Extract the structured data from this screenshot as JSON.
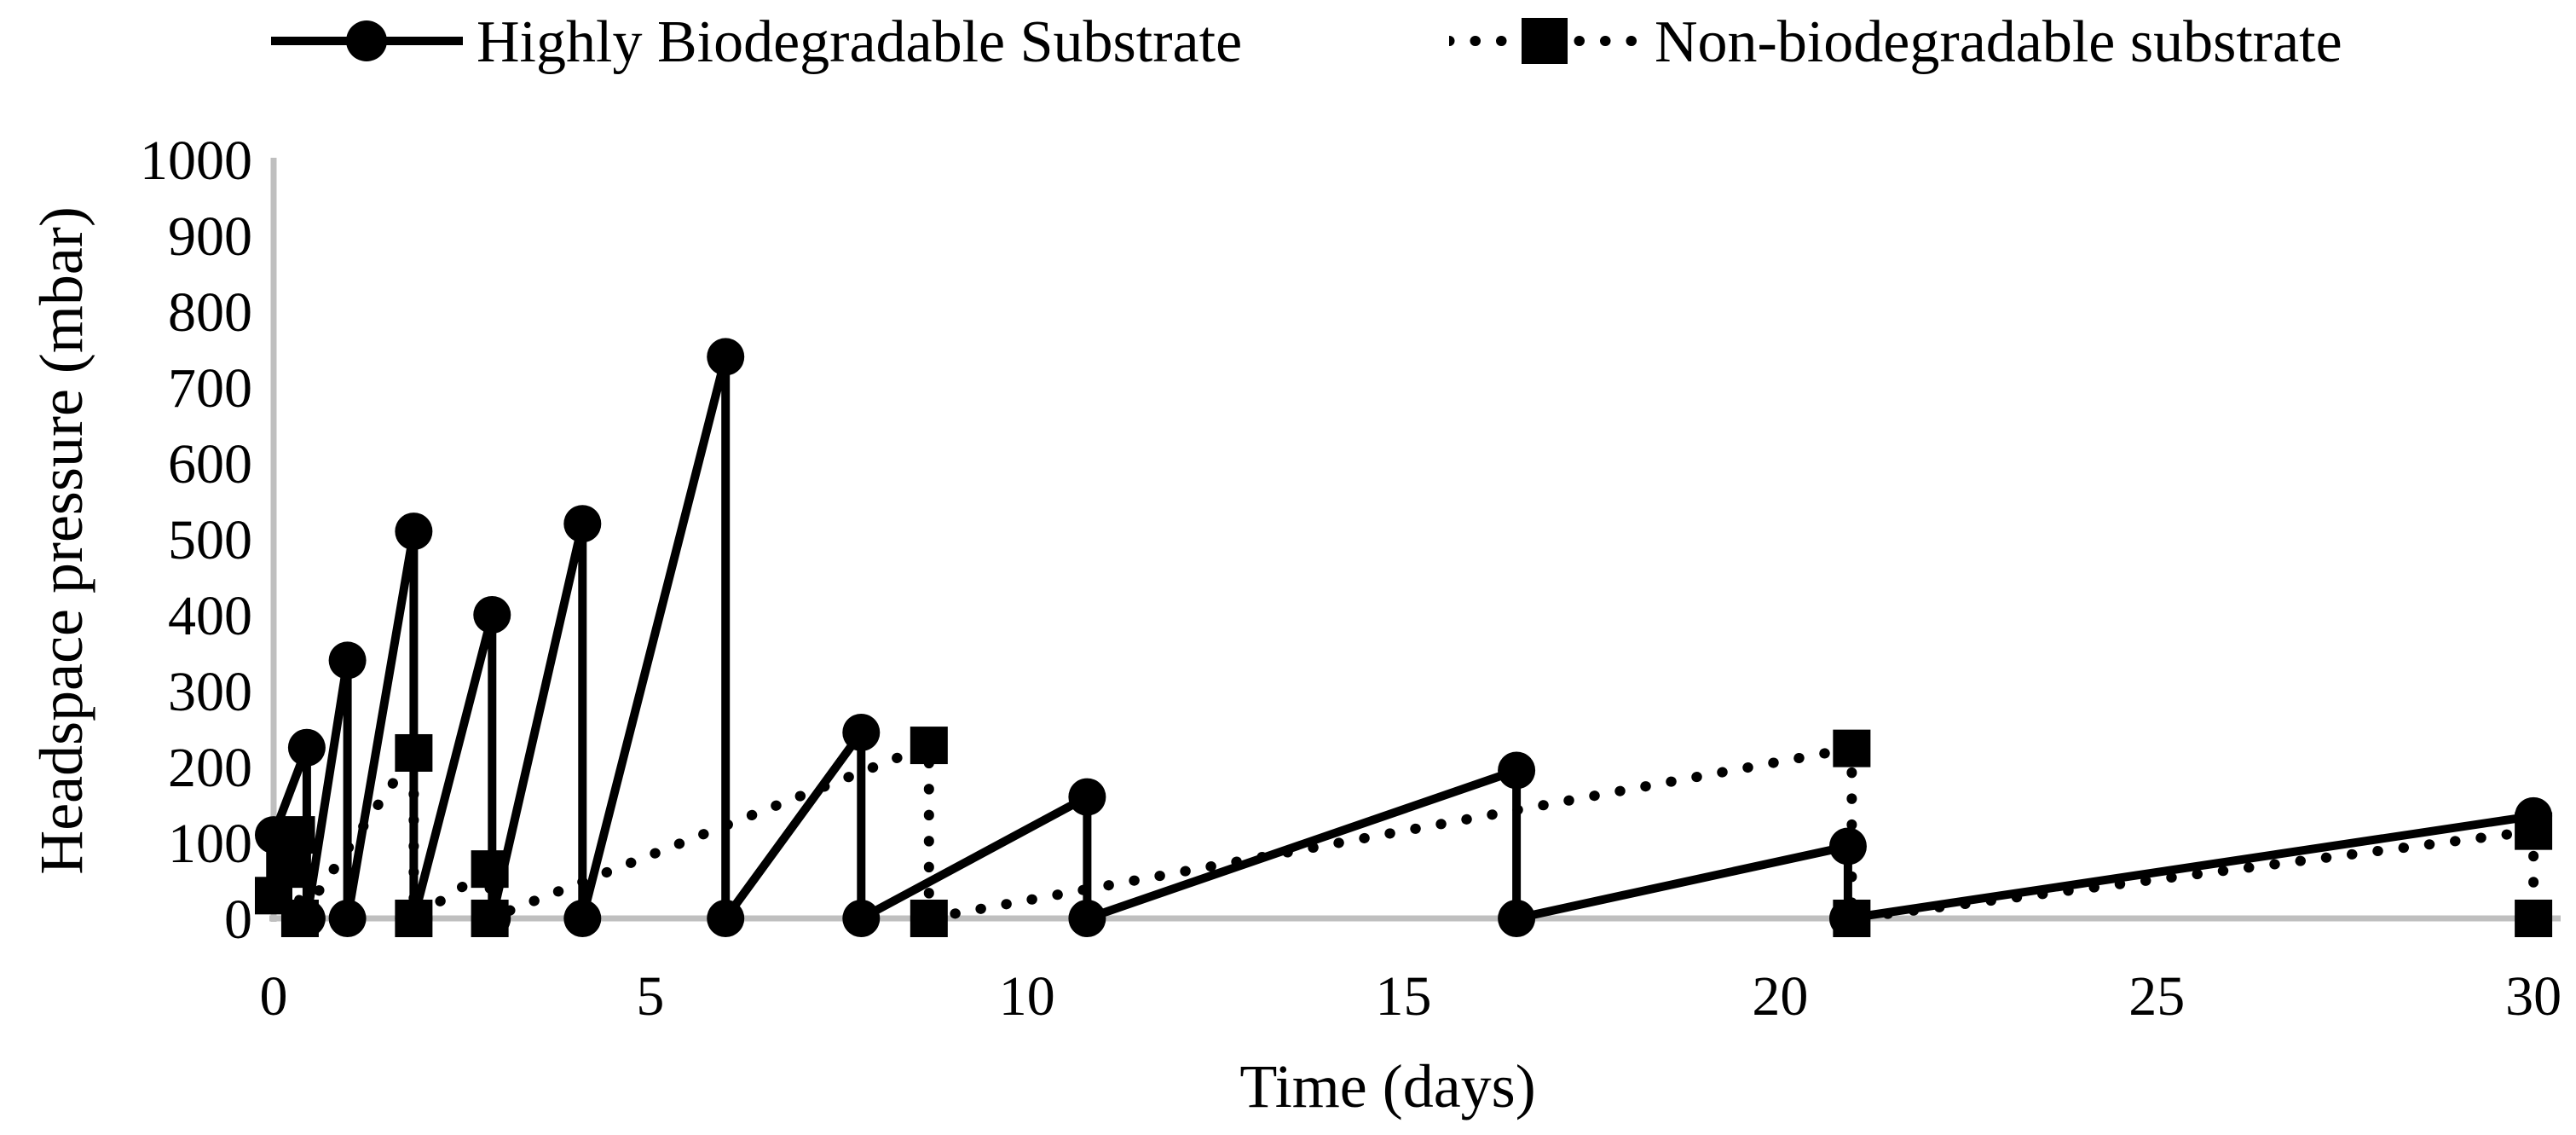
{
  "chart_data": {
    "type": "line",
    "title": "",
    "xlabel": "Time (days)",
    "ylabel": "Headspace pressure (mbar)",
    "xlim": [
      0,
      30
    ],
    "ylim": [
      0,
      1000
    ],
    "xticks": [
      0,
      5,
      10,
      15,
      20,
      25,
      30
    ],
    "yticks": [
      0,
      100,
      200,
      300,
      400,
      500,
      600,
      700,
      800,
      900,
      1000
    ],
    "grid": false,
    "legend_position": "top",
    "axis_color": "#BFBFBF",
    "series_color": "#000000",
    "series": [
      {
        "name": "Highly Biodegradable Substrate",
        "marker": "circle",
        "line": "solid",
        "points": [
          [
            0,
            110
          ],
          [
            0.44,
            225
          ],
          [
            0.44,
            0
          ],
          [
            0.98,
            340
          ],
          [
            0.98,
            0
          ],
          [
            1.86,
            510
          ],
          [
            1.86,
            0
          ],
          [
            2.9,
            400
          ],
          [
            2.9,
            0
          ],
          [
            4.1,
            520
          ],
          [
            4.1,
            0
          ],
          [
            6,
            740
          ],
          [
            6,
            0
          ],
          [
            7.8,
            245
          ],
          [
            7.8,
            0
          ],
          [
            10.8,
            160
          ],
          [
            10.8,
            0
          ],
          [
            16.5,
            195
          ],
          [
            16.5,
            0
          ],
          [
            20.9,
            95
          ],
          [
            20.9,
            0
          ],
          [
            30,
            135
          ]
        ]
      },
      {
        "name": "Non-biodegradable substrate",
        "marker": "square",
        "line": "dotted",
        "points": [
          [
            0,
            30
          ],
          [
            0.15,
            65
          ],
          [
            0.3,
            110
          ],
          [
            0.35,
            0
          ],
          [
            1.86,
            218
          ],
          [
            1.86,
            0
          ],
          [
            2.87,
            65
          ],
          [
            2.87,
            0
          ],
          [
            8.7,
            228
          ],
          [
            8.7,
            0
          ],
          [
            20.95,
            224
          ],
          [
            20.95,
            0
          ],
          [
            30,
            115
          ],
          [
            30,
            0
          ]
        ]
      }
    ]
  }
}
